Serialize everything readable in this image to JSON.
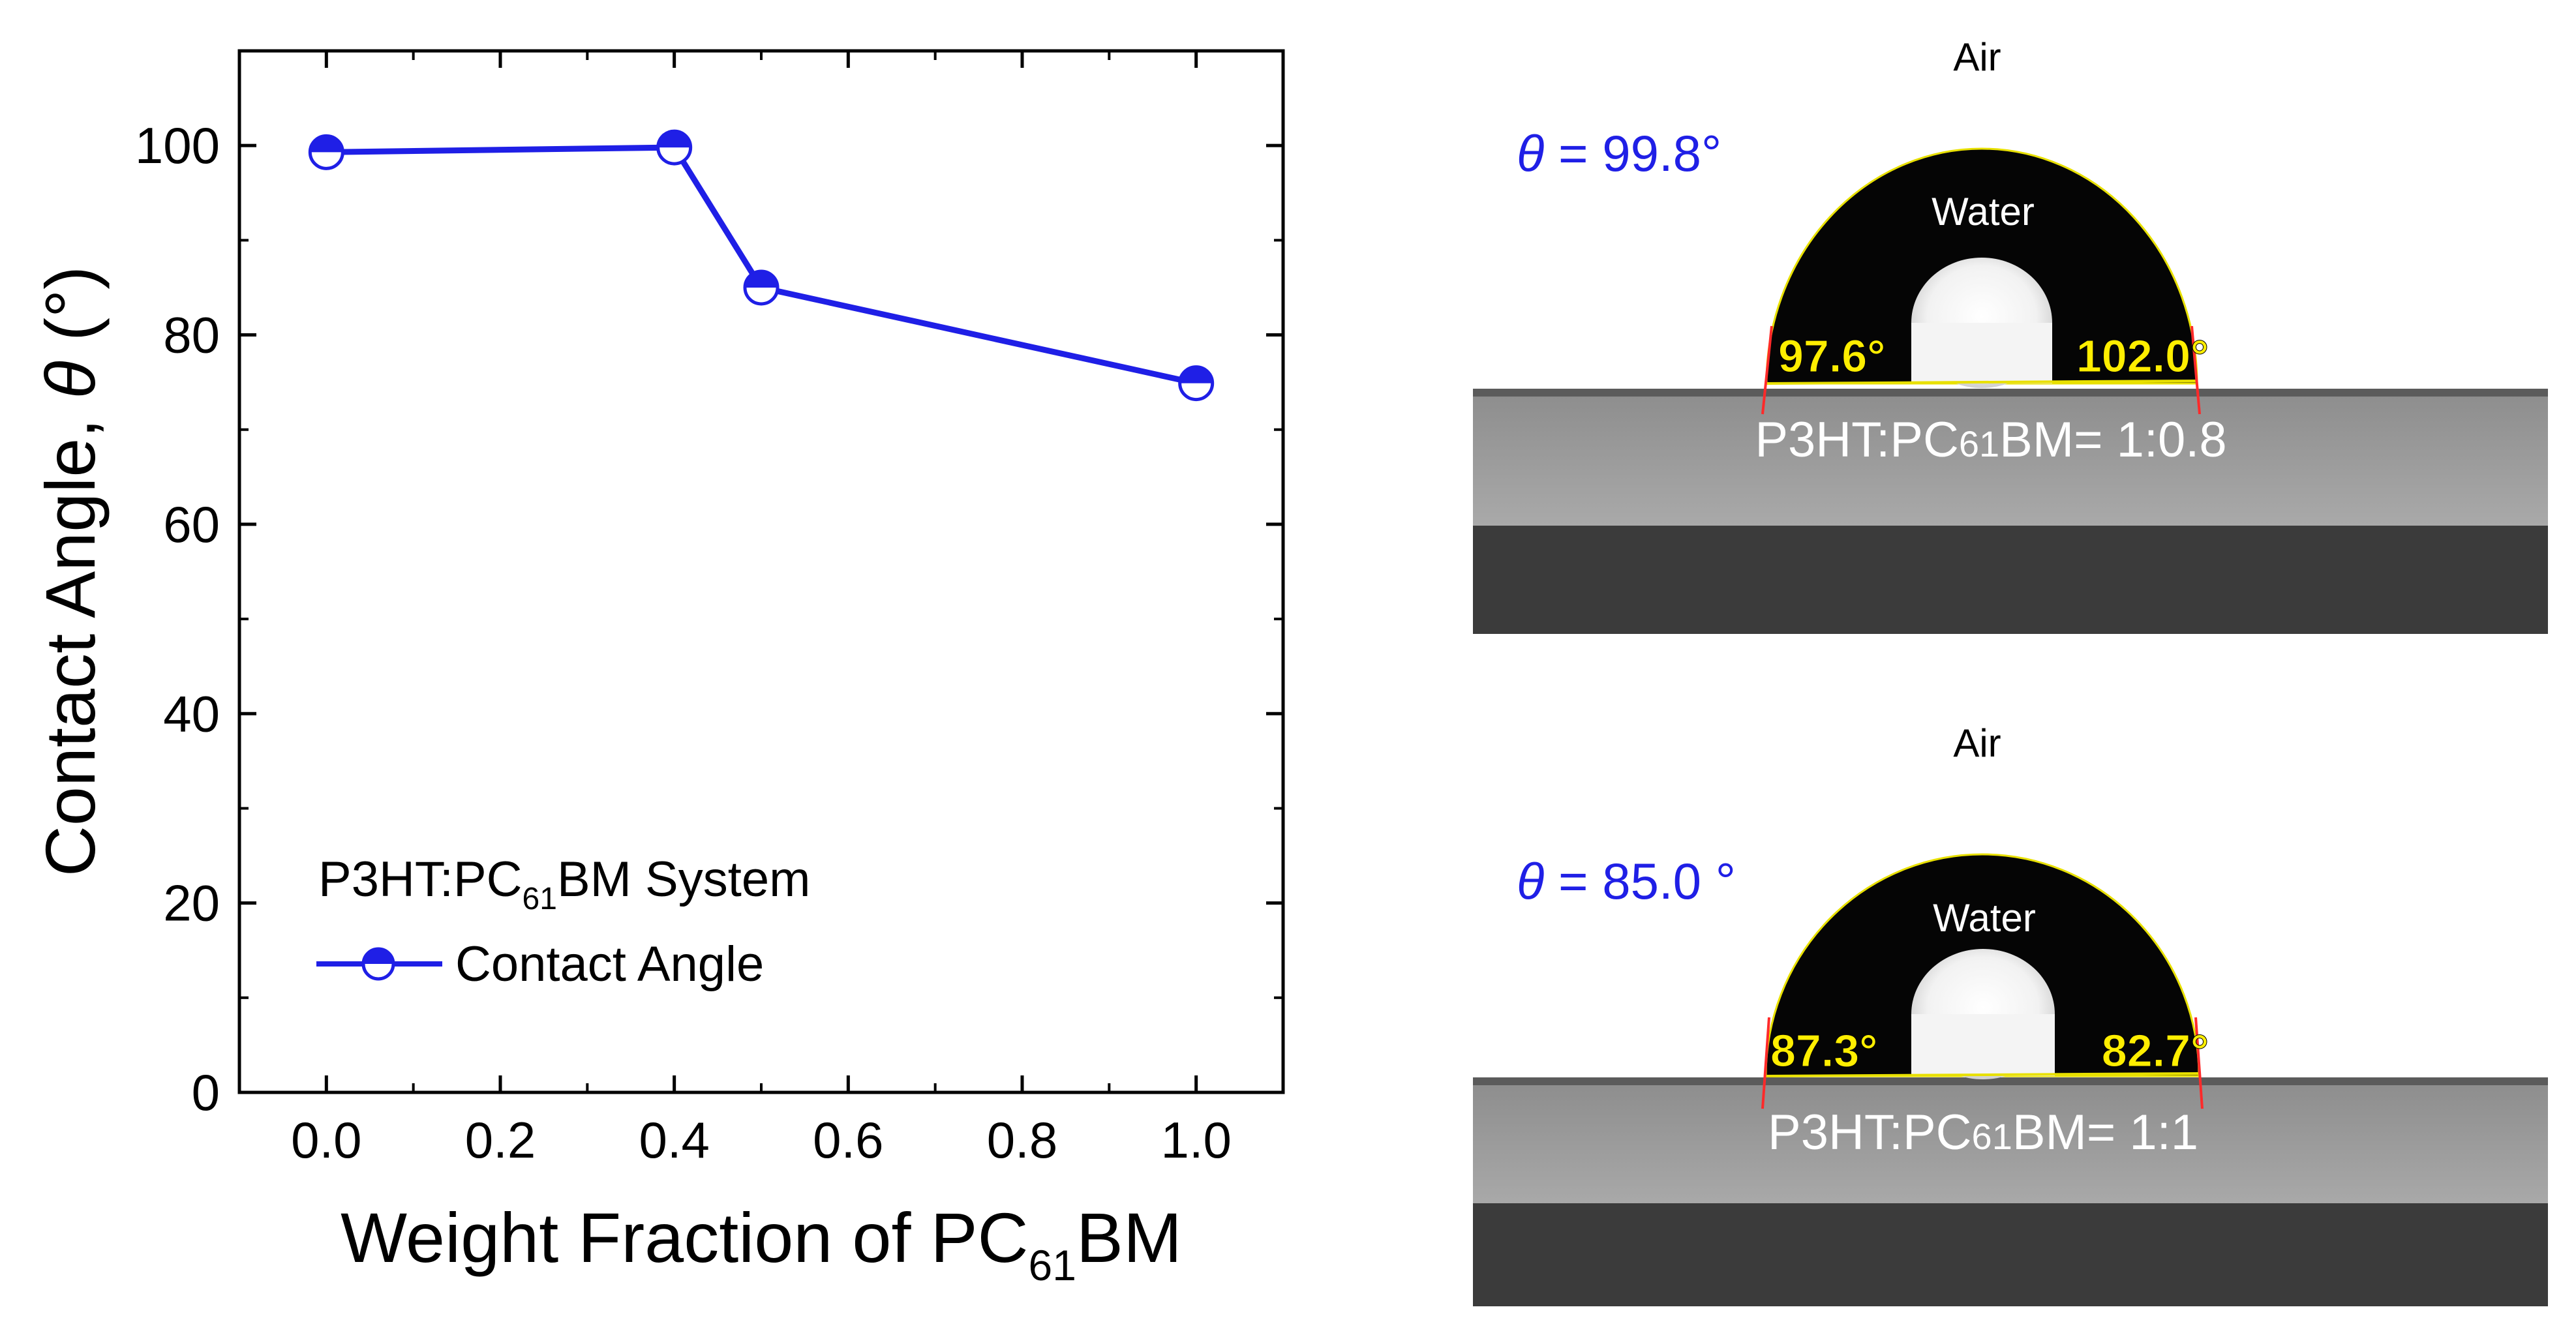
{
  "chart_data": {
    "type": "line",
    "title": "",
    "xlabel": {
      "main": "Weight Fraction of PC",
      "sub": "61",
      "tail": "BM"
    },
    "ylabel": {
      "main": "Contact Angle, ",
      "symbol": "θ",
      "unit": " (°)"
    },
    "xlim": [
      -0.1,
      1.1
    ],
    "ylim": [
      0,
      110
    ],
    "x_ticks": [
      0.0,
      0.2,
      0.4,
      0.6,
      0.8,
      1.0
    ],
    "x_tick_labels": [
      "0.0",
      "0.2",
      "0.4",
      "0.6",
      "0.8",
      "1.0"
    ],
    "y_ticks": [
      0,
      20,
      40,
      60,
      80,
      100
    ],
    "y_tick_labels": [
      "0",
      "20",
      "40",
      "60",
      "80",
      "100"
    ],
    "grid": false,
    "legend": {
      "placement": "bottom-left",
      "title": {
        "main": "P3HT:PC",
        "sub": "61",
        "tail": "BM System"
      },
      "entry": "Contact Angle"
    },
    "series": [
      {
        "name": "Contact Angle",
        "color": "#1f1fe6",
        "x": [
          0.0,
          0.4,
          0.5,
          1.0
        ],
        "y": [
          99.3,
          99.8,
          85.0,
          74.9
        ]
      }
    ]
  },
  "photos": [
    {
      "air_label": "Air",
      "theta_symbol": "θ",
      "theta_text": " = 99.8°",
      "water_label": "Water",
      "left_angle": "97.6°",
      "right_angle": "102.0°",
      "ratio": {
        "main": "P3HT:PC",
        "sub": "61",
        "tail": "BM= 1:0.8"
      }
    },
    {
      "air_label": "Air",
      "theta_symbol": "θ",
      "theta_text": " = 85.0 °",
      "water_label": "Water",
      "left_angle": "87.3°",
      "right_angle": "82.7°",
      "ratio": {
        "main": "P3HT:PC",
        "sub": "61",
        "tail": "BM= 1:1"
      }
    }
  ],
  "colors": {
    "series": "#1f1fe6",
    "axis": "#000000",
    "angle_label": "#ffee00",
    "theta_label": "#1f1fe6",
    "tangent": "#ff2a2a"
  }
}
